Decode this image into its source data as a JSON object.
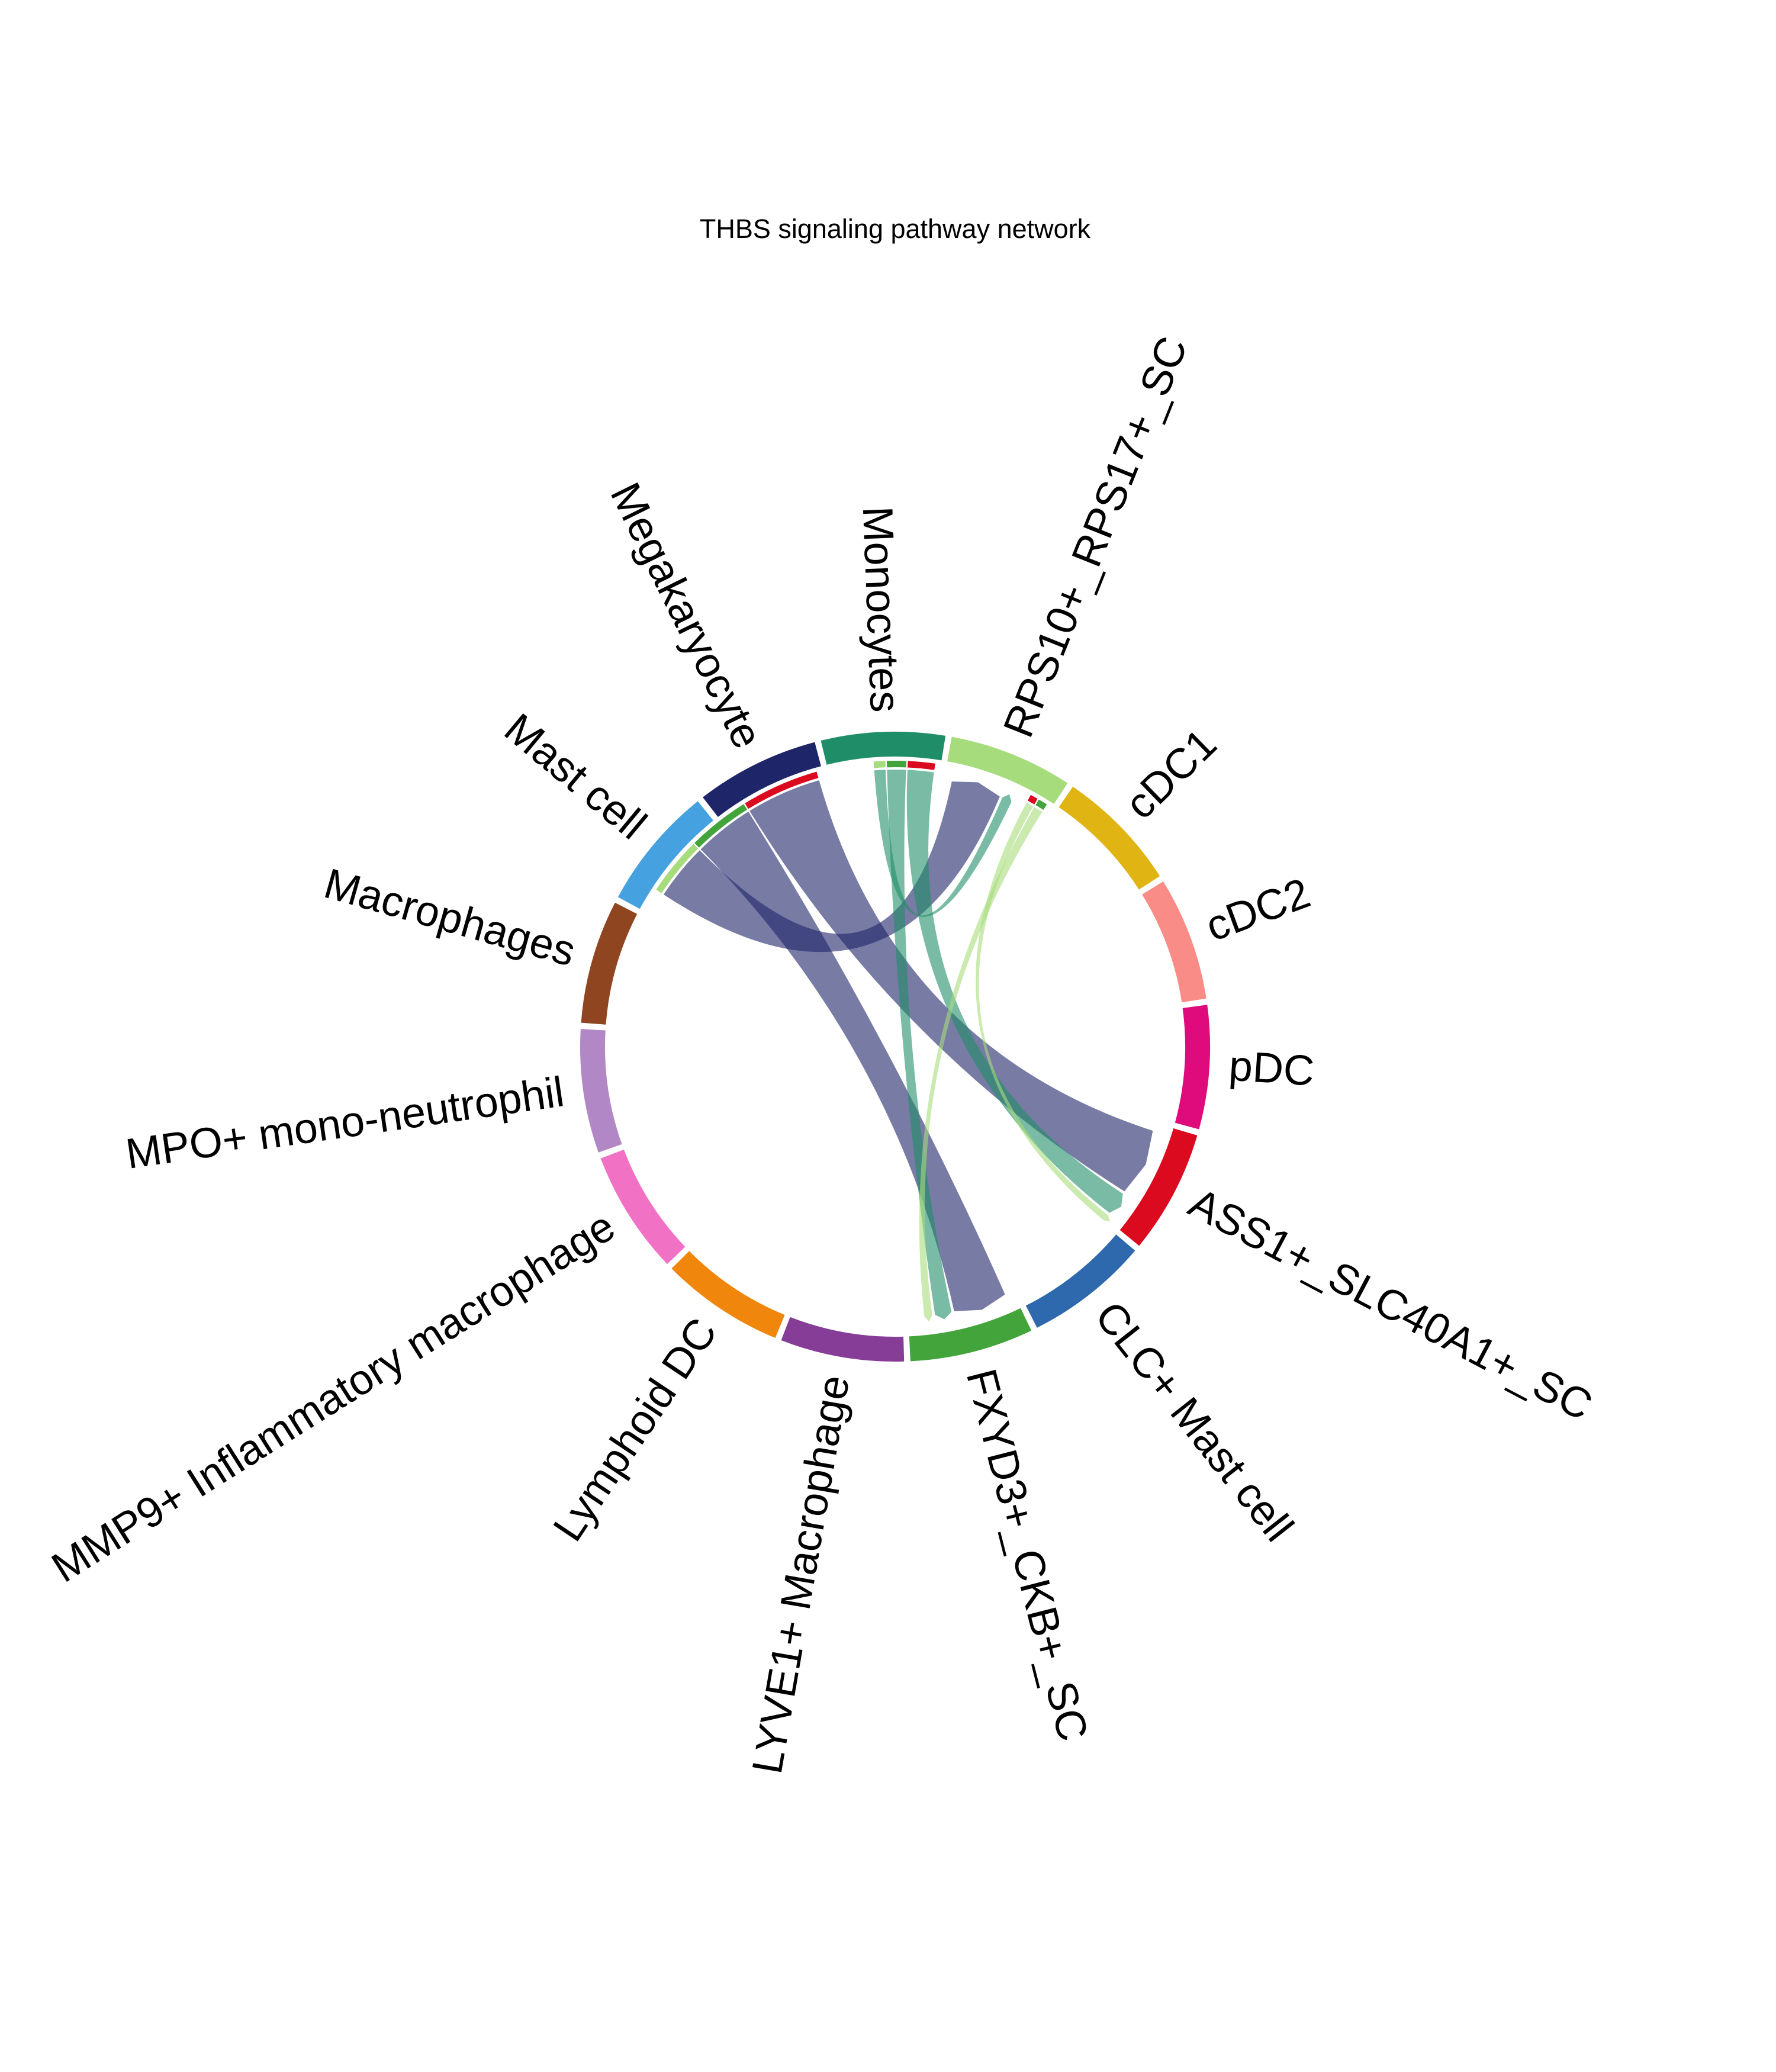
{
  "chart_data": {
    "type": "chord",
    "title": "THBS signaling pathway network",
    "sectors": [
      {
        "name": "RPS10+_RPS17+_SC",
        "color": "#a6dc7b"
      },
      {
        "name": "cDC1",
        "color": "#dfb413"
      },
      {
        "name": "cDC2",
        "color": "#f98c86"
      },
      {
        "name": "pDC",
        "color": "#df0a7b"
      },
      {
        "name": "ASS1+_SLC40A1+_SC",
        "color": "#dc0a1e"
      },
      {
        "name": "CLC+ Mast cell",
        "color": "#2f69ad"
      },
      {
        "name": "FXYD3+_CKB+_SC",
        "color": "#42a43a"
      },
      {
        "name": "LYVE1+ Macrophage",
        "color": "#863d97"
      },
      {
        "name": "Lymphoid DC",
        "color": "#f0870c"
      },
      {
        "name": "MMP9+ Inflammatory macrophage",
        "color": "#f171c4"
      },
      {
        "name": "MPO+ mono-neutrophil",
        "color": "#b287c6"
      },
      {
        "name": "Macrophages",
        "color": "#8f4620"
      },
      {
        "name": "Mast cell",
        "color": "#46a1e0"
      },
      {
        "name": "Megakaryocyte",
        "color": "#1e2569"
      },
      {
        "name": "Monocytes",
        "color": "#1f8d68"
      }
    ],
    "links": [
      {
        "source": "Megakaryocyte",
        "target": "ASS1+_SLC40A1+_SC",
        "value": 1.0,
        "color": "#1e2569"
      },
      {
        "source": "Megakaryocyte",
        "target": "FXYD3+_CKB+_SC",
        "value": 0.8,
        "color": "#1e2569"
      },
      {
        "source": "Megakaryocyte",
        "target": "RPS10+_RPS17+_SC",
        "value": 0.75,
        "color": "#1e2569"
      },
      {
        "source": "Monocytes",
        "target": "ASS1+_SLC40A1+_SC",
        "value": 0.35,
        "color": "#1f8d68"
      },
      {
        "source": "Monocytes",
        "target": "FXYD3+_CKB+_SC",
        "value": 0.25,
        "color": "#1f8d68"
      },
      {
        "source": "Monocytes",
        "target": "RPS10+_RPS17+_SC",
        "value": 0.15,
        "color": "#1f8d68"
      },
      {
        "source": "RPS10+_RPS17+_SC",
        "target": "FXYD3+_CKB+_SC",
        "value": 0.12,
        "color": "#a6dc7b"
      },
      {
        "source": "RPS10+_RPS17+_SC",
        "target": "ASS1+_SLC40A1+_SC",
        "value": 0.1,
        "color": "#a6dc7b"
      }
    ]
  }
}
